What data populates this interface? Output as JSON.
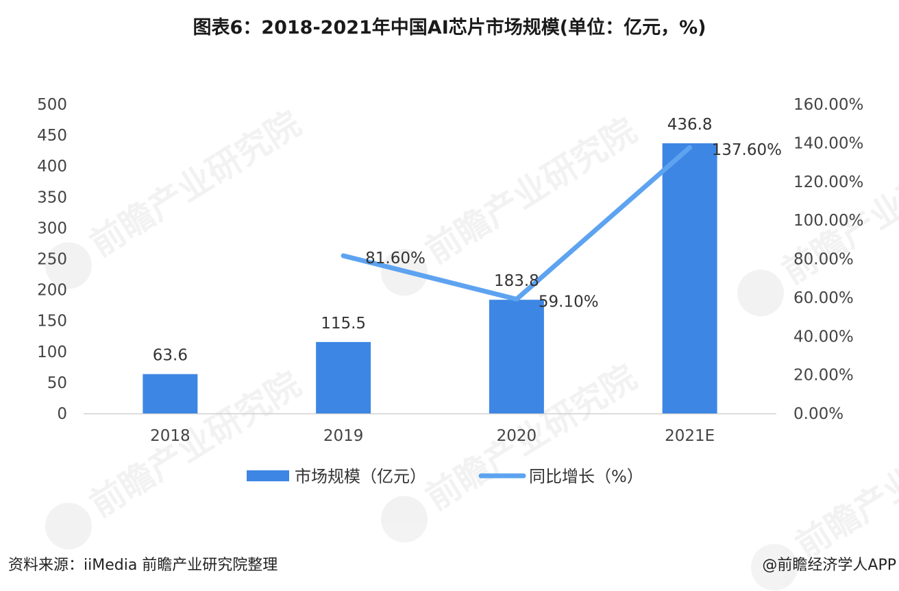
{
  "title": "图表6：2018-2021年中国AI芯片市场规模(单位：亿元，%)",
  "source": "资料来源：iiMedia 前瞻产业研究院整理",
  "credit": "@前瞻经济学人APP",
  "watermark": "前瞻产业研究院",
  "colors": {
    "bar": "#3d86e4",
    "line": "#5da3f0",
    "axis": "#d0d0d0"
  },
  "chart_data": {
    "type": "bar",
    "categories": [
      "2018",
      "2019",
      "2020",
      "2021E"
    ],
    "series": [
      {
        "name": "市场规模（亿元）",
        "type": "bar",
        "axis": "left",
        "values": [
          63.6,
          115.5,
          183.8,
          436.8
        ],
        "labels": [
          "63.6",
          "115.5",
          "183.8",
          "436.8"
        ]
      },
      {
        "name": "同比增长（%）",
        "type": "line",
        "axis": "right",
        "values": [
          null,
          81.6,
          59.1,
          137.6
        ],
        "labels": [
          "",
          "81.60%",
          "59.10%",
          "137.60%"
        ]
      }
    ],
    "ylim": [
      0,
      500
    ],
    "yticks": [
      "0",
      "50",
      "100",
      "150",
      "200",
      "250",
      "300",
      "350",
      "400",
      "450",
      "500"
    ],
    "y2lim": [
      0,
      160
    ],
    "y2ticks": [
      "0.00%",
      "20.00%",
      "40.00%",
      "60.00%",
      "80.00%",
      "100.00%",
      "120.00%",
      "140.00%",
      "160.00%"
    ],
    "legend": "bottom",
    "grid": false
  }
}
